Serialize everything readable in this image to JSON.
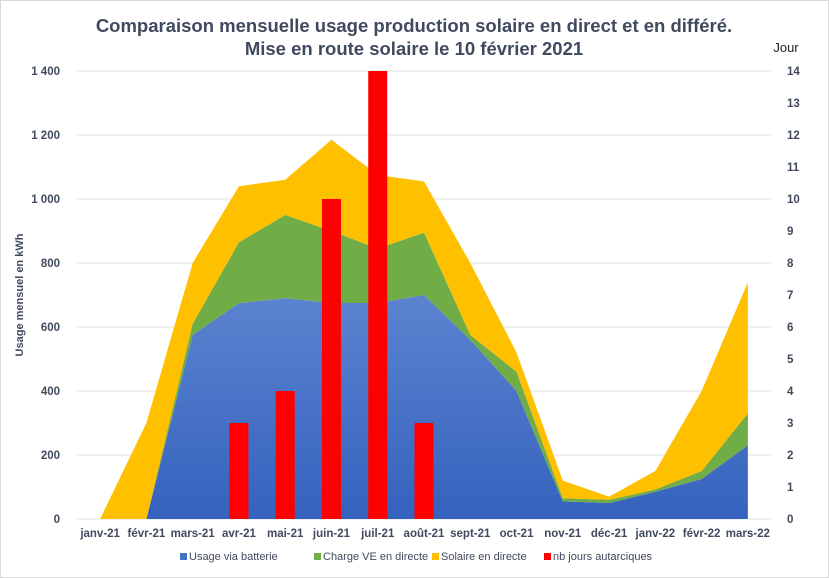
{
  "chart_data": {
    "type": "area",
    "title_line1": "Comparaison  mensuelle usage production  solaire en direct et en différé.",
    "title_line2": "Mise en route solaire  le 10 février 2021",
    "xlabel": "",
    "ylabel": "Usage  mensuel en kWh",
    "y2label": "Jour",
    "ylim": [
      0,
      1400
    ],
    "y2lim": [
      0,
      14
    ],
    "yticks": [
      "0",
      "200",
      "400",
      "600",
      "800",
      "1 000",
      "1 200",
      "1 400"
    ],
    "y2ticks": [
      "0",
      "1",
      "2",
      "3",
      "4",
      "5",
      "6",
      "7",
      "8",
      "9",
      "10",
      "11",
      "12",
      "13",
      "14"
    ],
    "grid": true,
    "legend_position": "bottom",
    "categories": [
      "janv-21",
      "févr-21",
      "mars-21",
      "avr-21",
      "mai-21",
      "juin-21",
      "juil-21",
      "août-21",
      "sept-21",
      "oct-21",
      "nov-21",
      "déc-21",
      "janv-22",
      "févr-22",
      "mars-22"
    ],
    "series": [
      {
        "name": "Usage via batterie",
        "kind": "stacked-area",
        "axis": "left",
        "color": "#4472c4",
        "values": [
          0,
          0,
          575,
          675,
          690,
          675,
          675,
          700,
          560,
          400,
          55,
          50,
          85,
          125,
          230
        ]
      },
      {
        "name": "Charge VE en directe",
        "kind": "stacked-area",
        "axis": "left",
        "color": "#70ad47",
        "values": [
          0,
          0,
          35,
          190,
          260,
          225,
          170,
          195,
          15,
          60,
          10,
          10,
          7,
          25,
          100
        ]
      },
      {
        "name": "Solaire en directe",
        "kind": "stacked-area",
        "axis": "left",
        "color": "#ffc000",
        "values": [
          0,
          300,
          190,
          175,
          110,
          285,
          230,
          160,
          225,
          60,
          55,
          10,
          58,
          250,
          410
        ]
      },
      {
        "name": "nb jours autarciques",
        "kind": "bar",
        "axis": "right",
        "color": "#ff0000",
        "values": [
          0,
          0,
          0,
          3,
          4,
          10,
          14,
          3,
          0,
          0,
          0,
          0,
          0,
          0,
          0
        ]
      }
    ]
  }
}
